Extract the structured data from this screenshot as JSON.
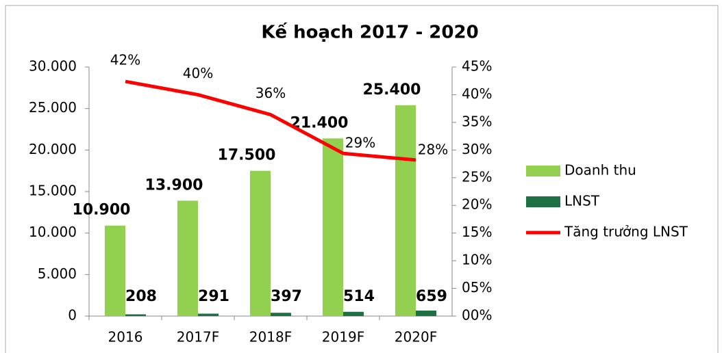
{
  "chart_data": {
    "type": "bar",
    "title": "Kế hoạch 2017 - 2020",
    "categories": [
      "2016",
      "2017F",
      "2018F",
      "2019F",
      "2020F"
    ],
    "series": [
      {
        "name": "Doanh thu",
        "type": "bar",
        "color": "#92d050",
        "values": [
          10900,
          13900,
          17500,
          21400,
          25400
        ],
        "value_labels": [
          "10.900",
          "13.900",
          "17.500",
          "21.400",
          "25.400"
        ]
      },
      {
        "name": "LNST",
        "type": "bar",
        "color": "#1e7145",
        "values": [
          208,
          291,
          397,
          514,
          659
        ]
      },
      {
        "name": "Tăng trưởng LNST",
        "type": "line",
        "axis": "y2",
        "color": "#ff0000",
        "values": [
          42.4,
          40,
          36.4,
          29.4,
          28.2
        ],
        "value_labels": [
          "42%",
          "40%",
          "36%",
          "29%",
          "28%"
        ]
      }
    ],
    "ylim": [
      0,
      30000
    ],
    "yticks": [
      0,
      {
        "value": 5000,
        "label": "5.000"
      },
      {
        "value": 10000,
        "label": "10.000"
      },
      {
        "value": 15000,
        "label": "15.000"
      },
      {
        "value": 20000,
        "label": "20.000"
      },
      {
        "value": 25000,
        "label": "25.000"
      },
      {
        "value": 30000,
        "label": "30.000"
      }
    ],
    "y2lim": [
      0,
      45
    ],
    "y2ticks": [
      {
        "value": 0,
        "label": "00%"
      },
      {
        "value": 5,
        "label": "05%"
      },
      {
        "value": 10,
        "label": "10%"
      },
      {
        "value": 15,
        "label": "15%"
      },
      {
        "value": 20,
        "label": "20%"
      },
      {
        "value": 25,
        "label": "25%"
      },
      {
        "value": 30,
        "label": "30%"
      },
      {
        "value": 35,
        "label": "35%"
      },
      {
        "value": 40,
        "label": "40%"
      },
      {
        "value": 45,
        "label": "45%"
      }
    ],
    "legend": "right"
  }
}
